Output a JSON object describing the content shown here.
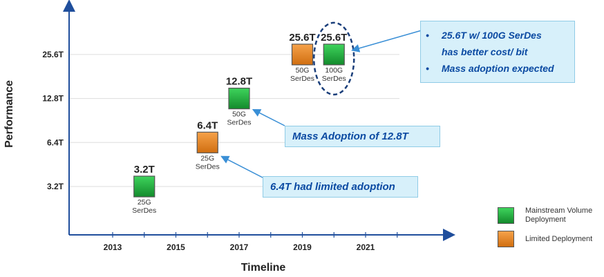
{
  "chart_data": {
    "type": "scatter",
    "xlabel": "Timeline",
    "ylabel": "Performance",
    "x_ticks": [
      "2013",
      "2015",
      "2017",
      "2019",
      "2021"
    ],
    "y_ticks": [
      "3.2T",
      "6.4T",
      "12.8T",
      "25.6T"
    ],
    "y_scale": "log2",
    "grid": {
      "horizontal": true,
      "vertical": false
    },
    "legend_position": "bottom-right",
    "points": [
      {
        "x": 2014,
        "y": 3.2,
        "value_label": "3.2T",
        "serdes": [
          "25G",
          "SerDes"
        ],
        "series": "Mainstream Volume Deployment"
      },
      {
        "x": 2016,
        "y": 6.4,
        "value_label": "6.4T",
        "serdes": [
          "25G",
          "SerDes"
        ],
        "series": "Limited Deployment"
      },
      {
        "x": 2017,
        "y": 12.8,
        "value_label": "12.8T",
        "serdes": [
          "50G",
          "SerDes"
        ],
        "series": "Mainstream Volume Deployment"
      },
      {
        "x": 2019,
        "y": 25.6,
        "value_label": "25.6T",
        "serdes": [
          "50G",
          "SerDes"
        ],
        "series": "Limited Deployment"
      },
      {
        "x": 2020,
        "y": 25.6,
        "value_label": "25.6T",
        "serdes": [
          "100G",
          "SerDes"
        ],
        "series": "Mainstream Volume Deployment",
        "highlighted": true
      }
    ],
    "series": [
      {
        "name": "Mainstream Volume Deployment",
        "color": "#1faa3b",
        "label_lines": [
          "Mainstream Volume",
          "Deployment"
        ]
      },
      {
        "name": "Limited Deployment",
        "color": "#ee8a1c",
        "label_lines": [
          "Limited Deployment"
        ]
      }
    ]
  },
  "callouts": {
    "top": {
      "lines": [
        "25.6T w/ 100G SerDes",
        "has better cost/ bit",
        "Mass adoption expected"
      ],
      "bullets": [
        0,
        2
      ]
    },
    "middle": {
      "text": "Mass Adoption of 12.8T"
    },
    "bottom": {
      "text": "6.4T had limited adoption"
    }
  },
  "colors": {
    "axis": "#1f4e9c",
    "gridline": "#dddddd",
    "callout_bg": "#d7f0fa",
    "callout_text": "#0b4aa2",
    "arrow": "#3a8fd6",
    "highlight_ring": "#1a3e7a"
  }
}
